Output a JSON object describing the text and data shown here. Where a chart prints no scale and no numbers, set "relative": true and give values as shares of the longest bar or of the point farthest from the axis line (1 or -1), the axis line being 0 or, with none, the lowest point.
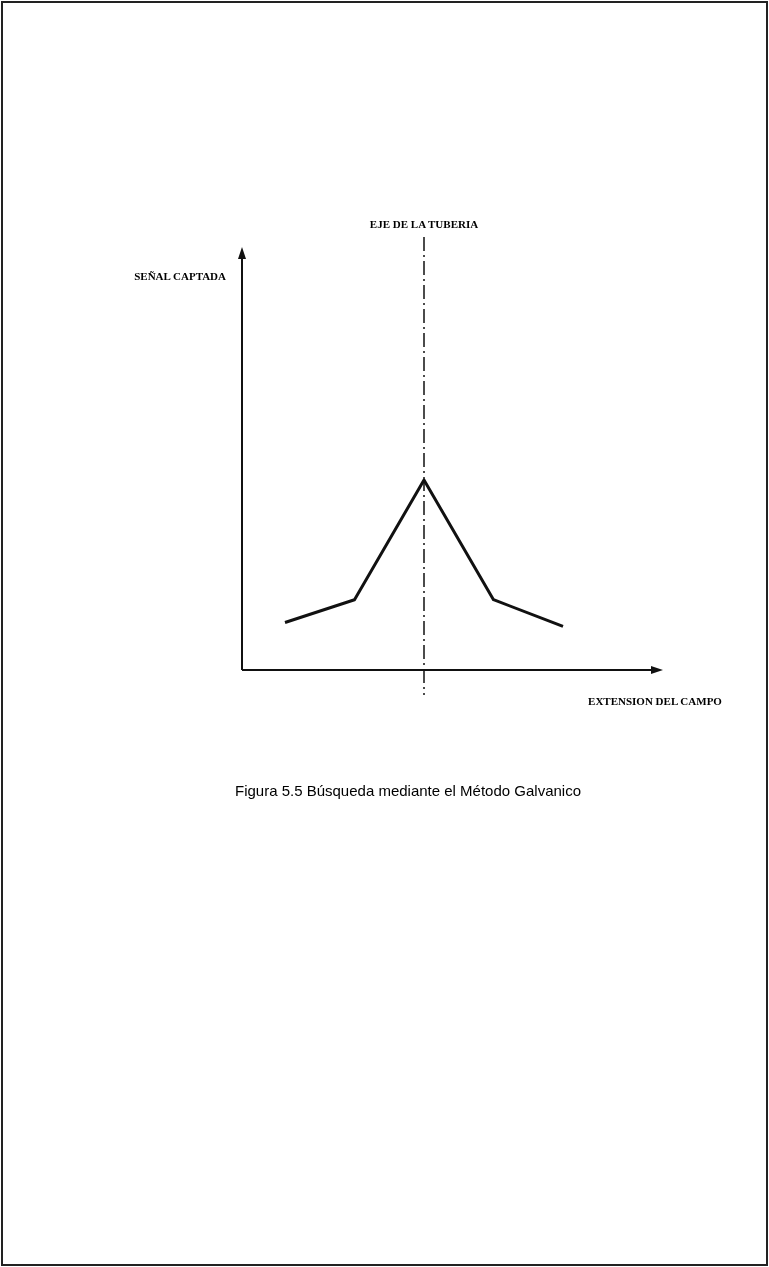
{
  "chart_data": {
    "type": "line",
    "relative": true,
    "categories": [
      null,
      null,
      null,
      null,
      null
    ],
    "series": [
      {
        "color": "#111111",
        "values": [
          0.25,
          0.37,
          1,
          0.37,
          0.23
        ]
      }
    ],
    "xlabel": "EXTENSION DEL CAMPO",
    "marker": "none",
    "line_style": "solid",
    "annotations": [
      "EJE DE LA TUBERIA",
      "SEÑAL CAPTADA",
      "Figura 5.5  Búsqueda mediante el Método Galvanico"
    ]
  }
}
